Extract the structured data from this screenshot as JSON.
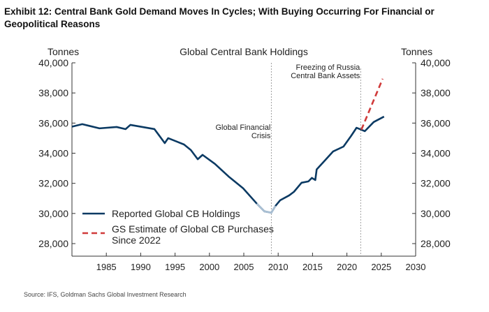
{
  "title": "Exhibit 12: Central Bank Gold Demand Moves In Cycles; With Buying Occurring For Financial or Geopolitical Reasons",
  "source": "Source: IFS, Goldman Sachs Global Investment Research",
  "chart_data": {
    "type": "line",
    "title": "Global Central Bank Holdings",
    "ylabel_left": "Tonnes",
    "ylabel_right": "Tonnes",
    "xlim": [
      1980,
      2030
    ],
    "ylim": [
      28000,
      40000
    ],
    "xticks": [
      1985,
      1990,
      1995,
      2000,
      2005,
      2010,
      2015,
      2020,
      2025,
      2030
    ],
    "yticks": [
      28000,
      30000,
      32000,
      34000,
      36000,
      38000,
      40000
    ],
    "ytick_labels": [
      "28,000",
      "30,000",
      "32,000",
      "34,000",
      "36,000",
      "38,000",
      "40,000"
    ],
    "legend_position": "bottom-left",
    "series": [
      {
        "name": "Reported Global CB Holdings",
        "color": "#0b3a63",
        "light_color": "#a9bfd3",
        "light_range": [
          2006.8,
          2010
        ],
        "style": "solid",
        "x": [
          1980,
          1981.5,
          1984,
          1986.5,
          1987.8,
          1988.5,
          1992,
          1992.6,
          1993.5,
          1994,
          1996.3,
          1997.3,
          1998.3,
          1999,
          2000.8,
          2002.8,
          2004.9,
          2006.9,
          2008,
          2009,
          2009.6,
          2010.3,
          2011.6,
          2012.3,
          2013.4,
          2014.4,
          2014.9,
          2015.4,
          2015.6,
          2016.8,
          2018,
          2019.5,
          2020.6,
          2021.4,
          2022.1,
          2022.6,
          2023.9,
          2025.4
        ],
        "y": [
          35760,
          35930,
          35650,
          35740,
          35600,
          35880,
          35600,
          35230,
          34670,
          35000,
          34580,
          34210,
          33600,
          33890,
          33290,
          32450,
          31670,
          30650,
          30140,
          30050,
          30500,
          30880,
          31200,
          31440,
          32040,
          32130,
          32360,
          32220,
          32920,
          33520,
          34120,
          34440,
          35140,
          35690,
          35560,
          35460,
          36070,
          36430
        ]
      },
      {
        "name": "GS Estimate of Global CB Purchases Since 2022",
        "legend_lines": [
          "GS Estimate of Global CB Purchases",
          "Since 2022"
        ],
        "color": "#d03a3a",
        "style": "dashed",
        "x": [
          2022.1,
          2025.2
        ],
        "y": [
          35560,
          38940
        ]
      }
    ],
    "annotations": [
      {
        "x": 2009,
        "lines": [
          "Global Financial",
          "Crisis"
        ]
      },
      {
        "x": 2022,
        "lines": [
          "Freezing of Russia",
          "Central Bank Assets"
        ]
      }
    ]
  }
}
